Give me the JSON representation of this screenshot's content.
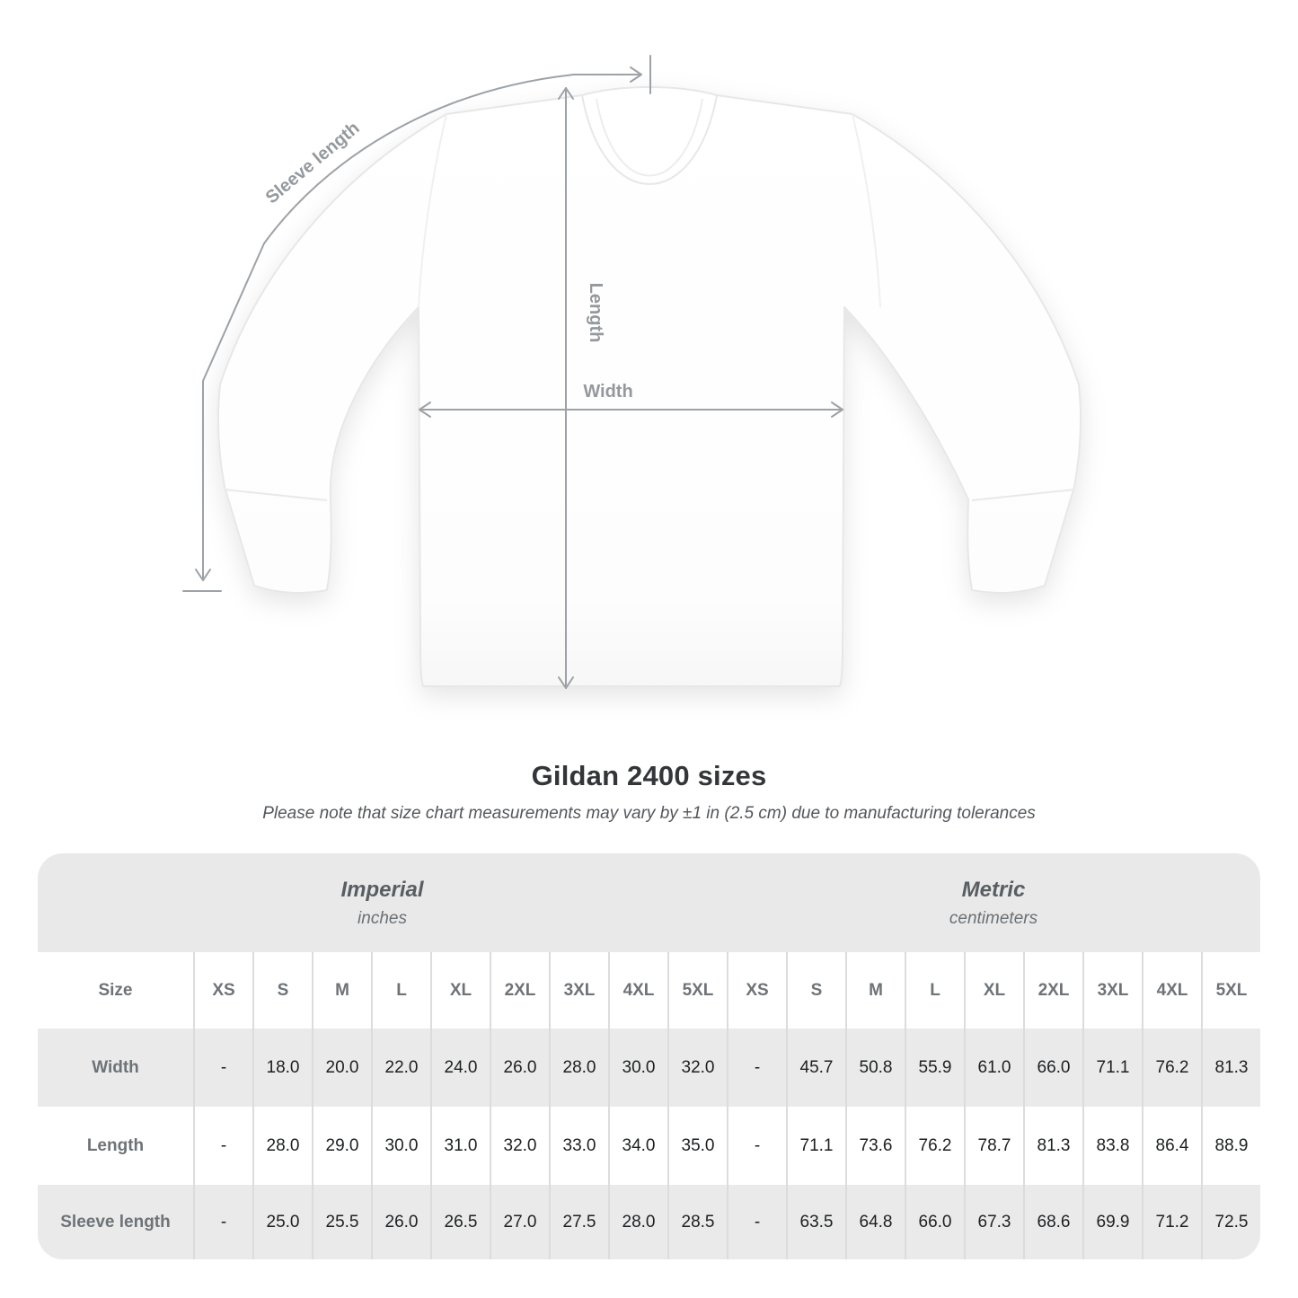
{
  "diagram": {
    "sleeve_length_label": "Sleeve length",
    "length_label": "Length",
    "width_label": "Width"
  },
  "title": "Gildan 2400 sizes",
  "note": "Please note that size chart measurements may vary by ±1 in (2.5 cm) due to manufacturing tolerances",
  "table": {
    "size_header": "Size",
    "unit_groups": [
      {
        "name": "Imperial",
        "unit": "inches"
      },
      {
        "name": "Metric",
        "unit": "centimeters"
      }
    ],
    "sizes": [
      "XS",
      "S",
      "M",
      "L",
      "XL",
      "2XL",
      "3XL",
      "4XL",
      "5XL"
    ],
    "rows": [
      {
        "label": "Width",
        "imperial": [
          "-",
          "18.0",
          "20.0",
          "22.0",
          "24.0",
          "26.0",
          "28.0",
          "30.0",
          "32.0"
        ],
        "metric": [
          "-",
          "45.7",
          "50.8",
          "55.9",
          "61.0",
          "66.0",
          "71.1",
          "76.2",
          "81.3"
        ]
      },
      {
        "label": "Length",
        "imperial": [
          "-",
          "28.0",
          "29.0",
          "30.0",
          "31.0",
          "32.0",
          "33.0",
          "34.0",
          "35.0"
        ],
        "metric": [
          "-",
          "71.1",
          "73.6",
          "76.2",
          "78.7",
          "81.3",
          "83.8",
          "86.4",
          "88.9"
        ]
      },
      {
        "label": "Sleeve length",
        "imperial": [
          "-",
          "25.0",
          "25.5",
          "26.0",
          "26.5",
          "27.0",
          "27.5",
          "28.0",
          "28.5"
        ],
        "metric": [
          "-",
          "63.5",
          "64.8",
          "66.0",
          "67.3",
          "68.6",
          "69.9",
          "71.2",
          "72.5"
        ]
      }
    ]
  },
  "colors": {
    "band_bg": "#e9e9e9",
    "alt_row_bg": "#eaeaea",
    "separator": "#dcdcdc",
    "header_text": "#6e7377",
    "value_text": "#1d1f21",
    "measure_line": "#9da2a7",
    "measure_label": "#94999e"
  }
}
